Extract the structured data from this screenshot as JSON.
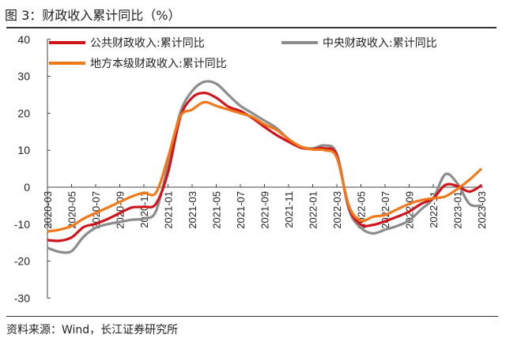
{
  "title": "图 3：财政收入累计同比（%）",
  "source": "资料来源：Wind，长江证券研究所",
  "chart_data": {
    "type": "line",
    "title": "财政收入累计同比（%）",
    "xlabel": "",
    "ylabel": "",
    "ylim": [
      -30,
      40
    ],
    "yticks": [
      40,
      30,
      20,
      10,
      0,
      -10,
      -20,
      -30
    ],
    "xtick_labels": [
      "2020-03",
      "2020-05",
      "2020-07",
      "2020-09",
      "2020-11",
      "2021-01",
      "2021-03",
      "2021-05",
      "2021-07",
      "2021-09",
      "2021-11",
      "2022-01",
      "2022-03",
      "2022-05",
      "2022-07",
      "2022-09",
      "2022-11",
      "2023-01",
      "2023-03"
    ],
    "x_months": [
      "2020-03",
      "2020-04",
      "2020-05",
      "2020-06",
      "2020-07",
      "2020-08",
      "2020-09",
      "2020-10",
      "2020-11",
      "2020-12",
      "2021-01",
      "2021-02",
      "2021-03",
      "2021-04",
      "2021-05",
      "2021-06",
      "2021-07",
      "2021-08",
      "2021-09",
      "2021-10",
      "2021-11",
      "2021-12",
      "2022-01",
      "2022-02",
      "2022-03",
      "2022-04",
      "2022-05",
      "2022-06",
      "2022-07",
      "2022-08",
      "2022-09",
      "2022-10",
      "2022-11",
      "2022-12",
      "2023-01",
      "2023-02",
      "2023-03"
    ],
    "legend_position": "top",
    "series": [
      {
        "name": "公共财政收入:累计同比",
        "color": "#d0141b",
        "values": [
          -14.3,
          -14.5,
          -13.6,
          -10.8,
          -9.9,
          -8.6,
          -7.0,
          -5.5,
          -5.3,
          -4.5,
          4,
          18.7,
          24.2,
          25.5,
          24.2,
          21.8,
          20.6,
          18.7,
          16.3,
          14.1,
          12.3,
          10.7,
          10.3,
          10.5,
          8.6,
          -5.4,
          -10.1,
          -10.2,
          -9.2,
          -8.0,
          -6.6,
          -4.5,
          -3.0,
          0.6,
          0.3,
          -1.2,
          0.5
        ]
      },
      {
        "name": "中央财政收入:累计同比",
        "color": "#8c8c8c",
        "values": [
          -16.4,
          -17.5,
          -17.3,
          -13.4,
          -11.0,
          -10.0,
          -9.4,
          -8.8,
          -8.5,
          -6.5,
          6,
          20,
          26,
          28.5,
          28,
          25,
          22,
          20,
          18,
          16,
          13,
          11,
          10.5,
          11.3,
          9,
          -6,
          -11,
          -12.5,
          -11.5,
          -10.5,
          -9,
          -6,
          -3,
          3.5,
          1,
          -4.5,
          -5
        ]
      },
      {
        "name": "地方本级财政收入:累计同比",
        "color": "#f07a1a",
        "values": [
          -12,
          -11.5,
          -10.5,
          -8.5,
          -7,
          -5.5,
          -4,
          -2.5,
          -1.5,
          -1.5,
          8,
          19,
          21,
          23,
          22,
          21,
          20,
          19,
          17,
          15.5,
          13,
          11,
          10.2,
          10,
          8,
          -5,
          -9,
          -8,
          -7.5,
          -6,
          -4.5,
          -3.5,
          -3,
          -2.5,
          -0.5,
          2,
          5
        ]
      }
    ]
  }
}
